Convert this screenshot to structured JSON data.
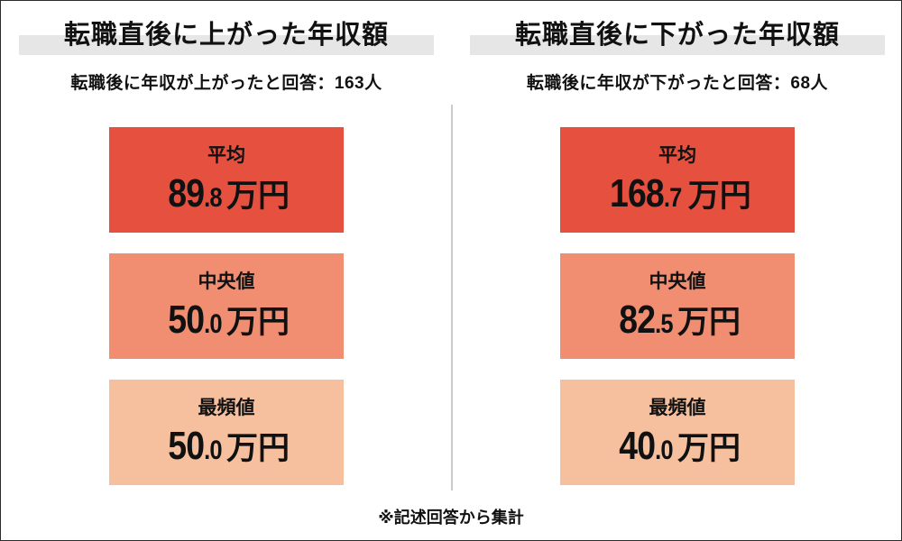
{
  "colors": {
    "card_average_bg": "#e6513f",
    "card_median_bg": "#f18d70",
    "card_mode_bg": "#f6c09e",
    "title_highlight": "#e6e6e6",
    "divider": "#cbcbcb",
    "canvas_border": "#2b2b2b",
    "text": "#111111"
  },
  "panels": [
    {
      "title": "転職直後に上がった年収額",
      "subtitle": "転職後に年収が上がったと回答：163人",
      "stats": [
        {
          "label": "平均",
          "int": "89",
          "dec": ".8",
          "unit": "万円"
        },
        {
          "label": "中央値",
          "int": "50",
          "dec": ".0",
          "unit": "万円"
        },
        {
          "label": "最頻値",
          "int": "50",
          "dec": ".0",
          "unit": "万円"
        }
      ]
    },
    {
      "title": "転職直後に下がった年収額",
      "subtitle": "転職後に年収が下がったと回答：68人",
      "stats": [
        {
          "label": "平均",
          "int": "168",
          "dec": ".7",
          "unit": "万円"
        },
        {
          "label": "中央値",
          "int": "82",
          "dec": ".5",
          "unit": "万円"
        },
        {
          "label": "最頻値",
          "int": "40",
          "dec": ".0",
          "unit": "万円"
        }
      ]
    }
  ],
  "footer": {
    "note": "※記述回答から集計"
  },
  "chart_data": [
    {
      "type": "table",
      "title": "転職直後に上がった年収額",
      "subtitle": "転職後に年収が上がったと回答：163人",
      "respondents": 163,
      "categories": [
        "平均",
        "中央値",
        "最頻値"
      ],
      "values": [
        89.8,
        50.0,
        50.0
      ],
      "unit": "万円",
      "note": "※記述回答から集計"
    },
    {
      "type": "table",
      "title": "転職直後に下がった年収額",
      "subtitle": "転職後に年収が下がったと回答：68人",
      "respondents": 68,
      "categories": [
        "平均",
        "中央値",
        "最頻値"
      ],
      "values": [
        168.7,
        82.5,
        40.0
      ],
      "unit": "万円",
      "note": "※記述回答から集計"
    }
  ]
}
